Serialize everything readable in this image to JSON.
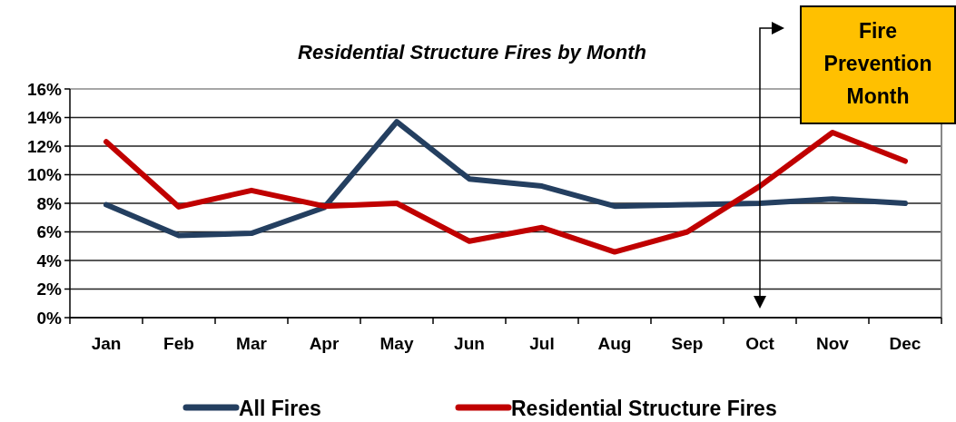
{
  "chart_data": {
    "type": "line",
    "title": "Residential Structure Fires by Month",
    "categories": [
      "Jan",
      "Feb",
      "Mar",
      "Apr",
      "May",
      "Jun",
      "Jul",
      "Aug",
      "Sep",
      "Oct",
      "Nov",
      "Dec"
    ],
    "series": [
      {
        "name": "All Fires",
        "color": "#243f60",
        "values": [
          7.9,
          5.75,
          5.9,
          7.7,
          13.7,
          9.7,
          9.2,
          7.8,
          7.9,
          8.0,
          8.3,
          8.0
        ]
      },
      {
        "name": "Residential Structure Fires",
        "color": "#c00000",
        "values": [
          12.3,
          7.75,
          8.9,
          7.8,
          8.0,
          5.35,
          6.3,
          4.6,
          6.0,
          9.2,
          12.95,
          10.95
        ]
      }
    ],
    "ylim": [
      0,
      16
    ],
    "yticks": [
      {
        "value": 0,
        "label": "0%"
      },
      {
        "value": 2,
        "label": "2%"
      },
      {
        "value": 4,
        "label": "4%"
      },
      {
        "value": 6,
        "label": "6%"
      },
      {
        "value": 8,
        "label": "8%"
      },
      {
        "value": 10,
        "label": "10%"
      },
      {
        "value": 12,
        "label": "12%"
      },
      {
        "value": 14,
        "label": "14%"
      },
      {
        "value": 16,
        "label": "16%"
      }
    ],
    "grid": "y",
    "legend": "bottom",
    "marker": "none",
    "line_style": "solid",
    "annotations": [
      "Fire Prevention Month"
    ]
  }
}
